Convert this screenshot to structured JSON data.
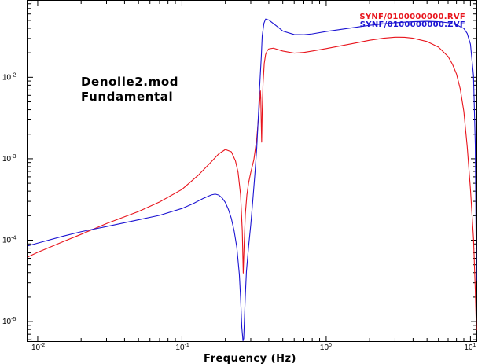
{
  "chart_data": {
    "type": "line",
    "xscale": "log",
    "yscale": "log",
    "xlim": [
      0.0085,
      11.0
    ],
    "ylim": [
      5.75e-06,
      0.087
    ],
    "xlabel": "Frequency (Hz)",
    "ylabel": "",
    "title": "",
    "grid": false,
    "legend_position": "top-right",
    "annotations": [
      "Denolle2.mod",
      "Fundamental"
    ],
    "x_tick_labels": [
      {
        "value": 0.01,
        "base": "10",
        "exp": "-2"
      },
      {
        "value": 0.1,
        "base": "10",
        "exp": "-1"
      },
      {
        "value": 1,
        "base": "10",
        "exp": "0"
      },
      {
        "value": 10,
        "base": "10",
        "exp": "1"
      }
    ],
    "y_tick_labels": [
      {
        "value": 1e-05,
        "base": "10",
        "exp": "-5"
      },
      {
        "value": 0.0001,
        "base": "10",
        "exp": "-4"
      },
      {
        "value": 0.001,
        "base": "10",
        "exp": "-3"
      },
      {
        "value": 0.01,
        "base": "10",
        "exp": "-2"
      }
    ],
    "series": [
      {
        "name": "SYNF/0100000000.RVF",
        "color": "#e8141c",
        "x": [
          0.0085,
          0.01,
          0.015,
          0.02,
          0.03,
          0.05,
          0.07,
          0.1,
          0.13,
          0.16,
          0.18,
          0.2,
          0.22,
          0.235,
          0.245,
          0.255,
          0.262,
          0.266,
          0.27,
          0.275,
          0.282,
          0.29,
          0.3,
          0.315,
          0.33,
          0.342,
          0.35,
          0.352,
          0.354,
          0.357,
          0.36,
          0.365,
          0.372,
          0.38,
          0.39,
          0.4,
          0.43,
          0.5,
          0.6,
          0.7,
          0.8,
          1.0,
          1.5,
          2.0,
          2.5,
          3.0,
          3.5,
          4.0,
          5.0,
          6.0,
          7.0,
          7.5,
          8.0,
          8.5,
          9.0,
          9.5,
          10.0,
          10.5,
          10.8,
          11.0
        ],
        "y": [
          6.2e-05,
          7.1e-05,
          9.6e-05,
          0.000118,
          0.00016,
          0.000225,
          0.000295,
          0.00042,
          0.00063,
          0.00092,
          0.00115,
          0.0013,
          0.00122,
          0.00094,
          0.00068,
          0.00036,
          0.00013,
          3.95e-05,
          9e-05,
          0.00021,
          0.00036,
          0.00051,
          0.00068,
          0.00097,
          0.00175,
          0.0038,
          0.0068,
          0.0055,
          0.0032,
          0.0016,
          0.0038,
          0.0085,
          0.0148,
          0.019,
          0.0212,
          0.0223,
          0.0228,
          0.021,
          0.0198,
          0.0202,
          0.021,
          0.0225,
          0.0258,
          0.0285,
          0.0302,
          0.0311,
          0.031,
          0.0302,
          0.0275,
          0.0235,
          0.018,
          0.0145,
          0.011,
          0.0072,
          0.0038,
          0.0014,
          0.00042,
          0.000105,
          2.45e-05,
          7.8e-06
        ]
      },
      {
        "name": "SYNF/0100000000.ZVF",
        "color": "#1c14d2",
        "x": [
          0.0085,
          0.01,
          0.015,
          0.02,
          0.03,
          0.05,
          0.07,
          0.1,
          0.12,
          0.14,
          0.16,
          0.17,
          0.18,
          0.19,
          0.2,
          0.21,
          0.22,
          0.23,
          0.24,
          0.25,
          0.255,
          0.26,
          0.265,
          0.268,
          0.271,
          0.275,
          0.28,
          0.29,
          0.3,
          0.31,
          0.32,
          0.33,
          0.34,
          0.345,
          0.35,
          0.355,
          0.36,
          0.37,
          0.38,
          0.4,
          0.45,
          0.5,
          0.6,
          0.7,
          0.8,
          1.0,
          1.5,
          2.0,
          3.0,
          4.0,
          5.0,
          6.0,
          7.0,
          8.0,
          9.0,
          9.5,
          10.0,
          10.5,
          10.8,
          11.0
        ],
        "y": [
          8.5e-05,
          9.2e-05,
          0.000112,
          0.000127,
          0.000147,
          0.000178,
          0.000202,
          0.000245,
          0.000282,
          0.000325,
          0.00036,
          0.000368,
          0.000358,
          0.00033,
          0.00029,
          0.000238,
          0.000185,
          0.00013,
          8.2e-05,
          3.8e-05,
          1.95e-05,
          8.5e-06,
          5.8e-06,
          6.2e-06,
          1.05e-05,
          2.1e-05,
          4.15e-05,
          8.5e-05,
          0.000155,
          0.00031,
          0.00063,
          0.00135,
          0.0038,
          0.0072,
          0.0115,
          0.018,
          0.032,
          0.046,
          0.052,
          0.0505,
          0.043,
          0.037,
          0.0335,
          0.0333,
          0.0341,
          0.0365,
          0.0405,
          0.0435,
          0.0468,
          0.0482,
          0.0487,
          0.0482,
          0.0468,
          0.0442,
          0.0398,
          0.0345,
          0.0255,
          0.0105,
          0.0015,
          3.2e-05
        ]
      }
    ]
  }
}
